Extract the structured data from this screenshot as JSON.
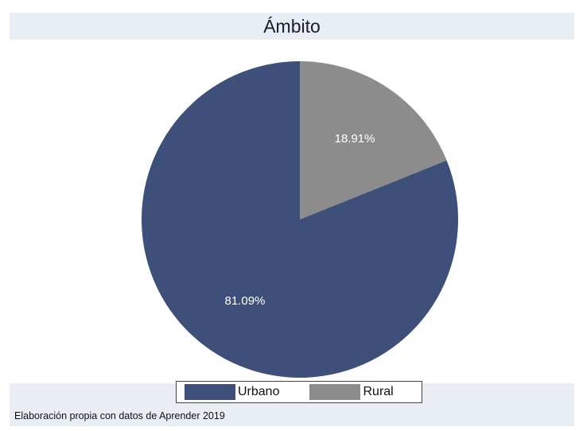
{
  "chart_data": {
    "type": "pie",
    "title": "Ámbito",
    "slices": [
      {
        "label": "Rural",
        "value": 18.91,
        "value_label": "18.91%",
        "color": "#8c8c8c"
      },
      {
        "label": "Urbano",
        "value": 81.09,
        "value_label": "81.09%",
        "color": "#3e5079"
      }
    ],
    "legend": {
      "placement": "bottom",
      "entries": [
        {
          "label": "Urbano",
          "color": "#3e5079"
        },
        {
          "label": "Rural",
          "color": "#8c8c8c"
        }
      ]
    },
    "note": "Elaboración propia con datos de Aprender 2019",
    "background": "#e8eef4"
  }
}
